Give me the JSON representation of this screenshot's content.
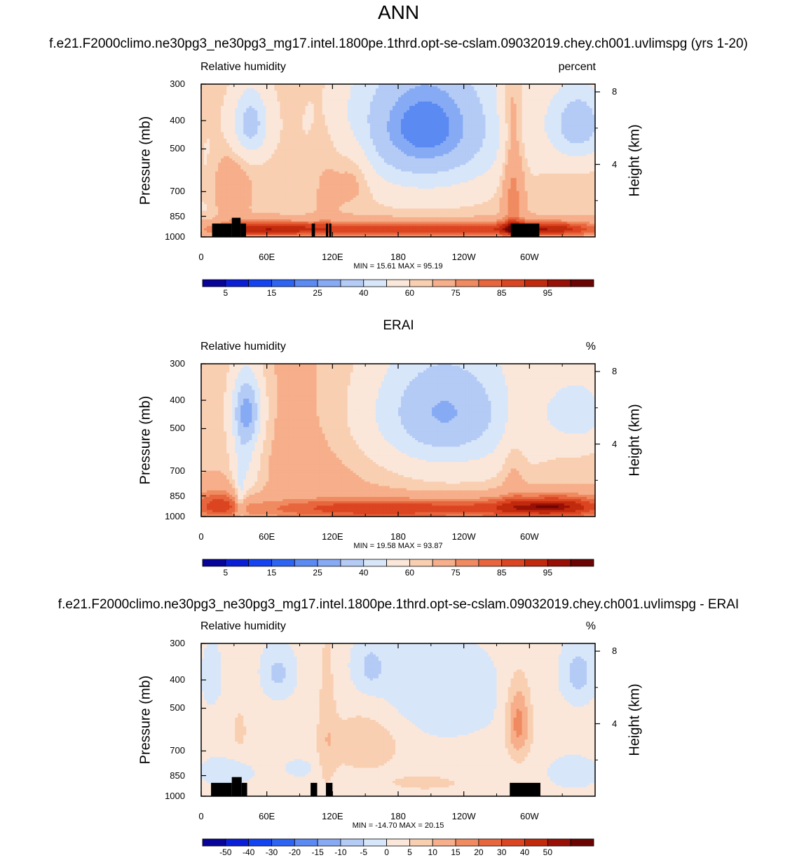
{
  "title": "ANN",
  "panel_titles": [
    "f.e21.F2000climo.ne30pg3_ne30pg3_mg17.intel.1800pe.1thrd.opt-se-cslam.09032019.chey.ch001.uvlimspg (yrs 1-20)",
    "ERAI",
    "f.e21.F2000climo.ne30pg3_ne30pg3_mg17.intel.1800pe.1thrd.opt-se-cslam.09032019.chey.ch001.uvlimspg - ERAI"
  ],
  "colors": {
    "abs_scale": [
      "#08049a",
      "#0a1fd6",
      "#1444f0",
      "#2e64f2",
      "#5a8af2",
      "#87aaf4",
      "#b4cbf6",
      "#d8e6f9",
      "#fbe7d9",
      "#f9cfb2",
      "#f6af8a",
      "#f08a60",
      "#e8663e",
      "#dc4521",
      "#c12a0c",
      "#981006",
      "#6b0503"
    ],
    "diff_scale": [
      "#08049a",
      "#0a1fd6",
      "#1444f0",
      "#2e64f2",
      "#5a8af2",
      "#87aaf4",
      "#b4cbf6",
      "#d8e6f9",
      "#fbe7d9",
      "#f9cfb2",
      "#f6af8a",
      "#f08a60",
      "#e8663e",
      "#dc4521",
      "#c12a0c",
      "#981006",
      "#6b0503"
    ],
    "topography": "#000000"
  },
  "chart_data": [
    {
      "type": "heatmap",
      "title": "f.e21.F2000climo.ne30pg3_ne30pg3_mg17.intel.1800pe.1thrd.opt-se-cslam.09032019.chey.ch001.uvlimspg (yrs 1-20)",
      "left_label": "Relative humidity",
      "right_label": "percent",
      "xlabel": "",
      "ylabel": "Pressure (mb)",
      "y2label": "Height (km)",
      "x_ticks": [
        "0",
        "60E",
        "120E",
        "180",
        "120W",
        "60W"
      ],
      "x_tick_values": [
        0,
        60,
        120,
        180,
        240,
        300
      ],
      "xlim": [
        0,
        360
      ],
      "y_ticks": [
        "300",
        "400",
        "500",
        "700",
        "850",
        "1000"
      ],
      "y_tick_values": [
        300,
        400,
        500,
        700,
        850,
        1000
      ],
      "ylim": [
        1000,
        300
      ],
      "y_scale": "log",
      "y2_ticks": [
        "8",
        "4"
      ],
      "y2_tick_values": [
        8,
        4
      ],
      "stats_label": "MIN =  15.61  MAX =  95.19",
      "min": 15.61,
      "max": 95.19,
      "colorbar": {
        "labels": [
          "5",
          "15",
          "25",
          "40",
          "60",
          "75",
          "85",
          "95"
        ],
        "levels": [
          5,
          10,
          15,
          20,
          25,
          30,
          40,
          50,
          60,
          65,
          75,
          80,
          85,
          90,
          95,
          97
        ],
        "scale": "abs"
      },
      "field": {
        "base": 63,
        "blobs": [
          {
            "lon": 45,
            "p": 410,
            "slon": 12,
            "sp": 80,
            "amp": -28
          },
          {
            "lon": 205,
            "p": 420,
            "slon": 50,
            "sp": 170,
            "amp": -42
          },
          {
            "lon": 345,
            "p": 410,
            "slon": 20,
            "sp": 90,
            "amp": -30
          },
          {
            "lon": 140,
            "p": 600,
            "slon": 12,
            "sp": 110,
            "amp": 11
          },
          {
            "lon": 115,
            "p": 560,
            "slon": 10,
            "sp": 220,
            "amp": 6
          },
          {
            "lon": 285,
            "p": 650,
            "slon": 7,
            "sp": 260,
            "amp": 18
          },
          {
            "lon": 22,
            "p": 690,
            "slon": 13,
            "sp": 120,
            "amp": 13
          },
          {
            "lon": 280,
            "p": 350,
            "slon": 8,
            "sp": 60,
            "amp": 5
          },
          {
            "lon": 180,
            "p": 940,
            "slon": 90,
            "sp": 45,
            "amp": 26
          },
          {
            "lon": 50,
            "p": 940,
            "slon": 40,
            "sp": 45,
            "amp": 22
          },
          {
            "lon": 320,
            "p": 940,
            "slon": 40,
            "sp": 45,
            "amp": 24
          },
          {
            "lon": 8,
            "p": 700,
            "slon": 10,
            "sp": 200,
            "amp": -8
          }
        ],
        "topo": [
          {
            "lon0": 10,
            "lon1": 28,
            "p": 900
          },
          {
            "lon0": 28,
            "lon1": 36,
            "p": 860
          },
          {
            "lon0": 36,
            "lon1": 41,
            "p": 900
          },
          {
            "lon0": 101,
            "lon1": 104,
            "p": 900
          },
          {
            "lon0": 114,
            "lon1": 116,
            "p": 900
          },
          {
            "lon0": 117,
            "lon1": 119,
            "p": 900
          },
          {
            "lon0": 283,
            "lon1": 309,
            "p": 900
          }
        ]
      }
    },
    {
      "type": "heatmap",
      "title": "ERAI",
      "left_label": "Relative humidity",
      "right_label": "%",
      "xlabel": "",
      "ylabel": "Pressure (mb)",
      "y2label": "Height (km)",
      "x_ticks": [
        "0",
        "60E",
        "120E",
        "180",
        "120W",
        "60W"
      ],
      "x_tick_values": [
        0,
        60,
        120,
        180,
        240,
        300
      ],
      "xlim": [
        0,
        360
      ],
      "y_ticks": [
        "300",
        "400",
        "500",
        "700",
        "850",
        "1000"
      ],
      "y_tick_values": [
        300,
        400,
        500,
        700,
        850,
        1000
      ],
      "ylim": [
        1000,
        300
      ],
      "y_scale": "log",
      "y2_ticks": [
        "8",
        "4"
      ],
      "y2_tick_values": [
        8,
        4
      ],
      "stats_label": "MIN =  19.58  MAX =  93.87",
      "min": 19.58,
      "max": 93.87,
      "colorbar": {
        "labels": [
          "5",
          "15",
          "25",
          "40",
          "60",
          "75",
          "85",
          "95"
        ],
        "levels": [
          5,
          10,
          15,
          20,
          25,
          30,
          40,
          50,
          60,
          65,
          75,
          80,
          85,
          90,
          95,
          97
        ],
        "scale": "abs"
      },
      "field": {
        "base": 63,
        "blobs": [
          {
            "lon": 42,
            "p": 430,
            "slon": 10,
            "sp": 90,
            "amp": -30
          },
          {
            "lon": 40,
            "p": 620,
            "slon": 9,
            "sp": 180,
            "amp": -16
          },
          {
            "lon": 220,
            "p": 440,
            "slon": 50,
            "sp": 160,
            "amp": -35
          },
          {
            "lon": 345,
            "p": 440,
            "slon": 22,
            "sp": 90,
            "amp": -18
          },
          {
            "lon": 120,
            "p": 550,
            "slon": 60,
            "sp": 350,
            "amp": 5
          },
          {
            "lon": 285,
            "p": 620,
            "slon": 8,
            "sp": 200,
            "amp": 7
          },
          {
            "lon": 180,
            "p": 940,
            "slon": 110,
            "sp": 60,
            "amp": 25
          },
          {
            "lon": 15,
            "p": 900,
            "slon": 18,
            "sp": 90,
            "amp": 18
          },
          {
            "lon": 325,
            "p": 920,
            "slon": 40,
            "sp": 70,
            "amp": 24
          },
          {
            "lon": 36,
            "p": 880,
            "slon": 3,
            "sp": 150,
            "amp": -14
          }
        ],
        "topo": []
      }
    },
    {
      "type": "heatmap",
      "title": "f.e21.F2000climo.ne30pg3_ne30pg3_mg17.intel.1800pe.1thrd.opt-se-cslam.09032019.chey.ch001.uvlimspg - ERAI",
      "left_label": "Relative humidity",
      "right_label": "%",
      "xlabel": "",
      "ylabel": "Pressure (mb)",
      "y2label": "Height (km)",
      "x_ticks": [
        "0",
        "60E",
        "120E",
        "180",
        "120W",
        "60W"
      ],
      "x_tick_values": [
        0,
        60,
        120,
        180,
        240,
        300
      ],
      "xlim": [
        0,
        360
      ],
      "y_ticks": [
        "300",
        "400",
        "500",
        "700",
        "850",
        "1000"
      ],
      "y_tick_values": [
        300,
        400,
        500,
        700,
        850,
        1000
      ],
      "ylim": [
        1000,
        300
      ],
      "y_scale": "log",
      "y2_ticks": [
        "8",
        "4"
      ],
      "y2_tick_values": [
        8,
        4
      ],
      "stats_label": "MIN = -14.70  MAX =  20.15",
      "min": -14.7,
      "max": 20.15,
      "colorbar": {
        "labels": [
          "-50",
          "-40",
          "-30",
          "-20",
          "-15",
          "-10",
          "-5",
          "0",
          "5",
          "10",
          "15",
          "20",
          "30",
          "40",
          "50"
        ],
        "levels": [
          -50,
          -40,
          -30,
          -20,
          -15,
          -10,
          -5,
          0,
          5,
          10,
          15,
          20,
          30,
          40,
          50
        ],
        "scale": "diff"
      },
      "field": {
        "base": 1.5,
        "blobs": [
          {
            "lon": 10,
            "p": 390,
            "slon": 6,
            "sp": 60,
            "amp": -6
          },
          {
            "lon": 70,
            "p": 380,
            "slon": 10,
            "sp": 50,
            "amp": -8
          },
          {
            "lon": 155,
            "p": 360,
            "slon": 10,
            "sp": 50,
            "amp": -7
          },
          {
            "lon": 210,
            "p": 450,
            "slon": 45,
            "sp": 120,
            "amp": -5
          },
          {
            "lon": 345,
            "p": 380,
            "slon": 10,
            "sp": 60,
            "amp": -9
          },
          {
            "lon": 290,
            "p": 560,
            "slon": 8,
            "sp": 120,
            "amp": 16
          },
          {
            "lon": 150,
            "p": 650,
            "slon": 25,
            "sp": 120,
            "amp": 8
          },
          {
            "lon": 115,
            "p": 560,
            "slon": 6,
            "sp": 300,
            "amp": 6
          },
          {
            "lon": 35,
            "p": 600,
            "slon": 10,
            "sp": 150,
            "amp": 4
          },
          {
            "lon": 90,
            "p": 800,
            "slon": 10,
            "sp": 40,
            "amp": -4
          },
          {
            "lon": 25,
            "p": 820,
            "slon": 15,
            "sp": 60,
            "amp": -7
          },
          {
            "lon": 340,
            "p": 830,
            "slon": 15,
            "sp": 70,
            "amp": -5
          },
          {
            "lon": 205,
            "p": 900,
            "slon": 25,
            "sp": 40,
            "amp": 6
          }
        ],
        "topo": [
          {
            "lon0": 9,
            "lon1": 28,
            "p": 900
          },
          {
            "lon0": 28,
            "lon1": 37,
            "p": 860
          },
          {
            "lon0": 37,
            "lon1": 42,
            "p": 900
          },
          {
            "lon0": 100,
            "lon1": 106,
            "p": 900
          },
          {
            "lon0": 114,
            "lon1": 120,
            "p": 900
          },
          {
            "lon0": 282,
            "lon1": 310,
            "p": 900
          }
        ]
      }
    }
  ]
}
